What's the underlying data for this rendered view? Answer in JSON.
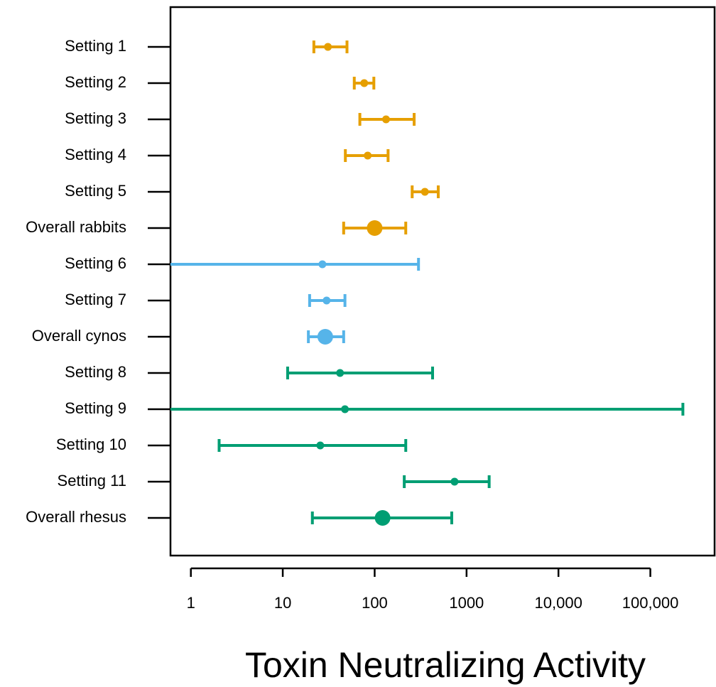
{
  "chart_data": {
    "type": "forest",
    "x_label": "Toxin Neutralizing Activity",
    "log_x": true,
    "categories": [
      "Setting 1",
      "Setting 2",
      "Setting 3",
      "Setting 4",
      "Setting 5",
      "Overall rabbits",
      "Setting 6",
      "Setting 7",
      "Overall cynos",
      "Setting 8",
      "Setting 9",
      "Setting 10",
      "Setting 11",
      "Overall rhesus"
    ],
    "values": [
      31,
      77,
      133,
      84,
      352,
      100,
      27,
      30,
      29,
      42,
      47.5,
      25.6,
      740,
      122
    ],
    "ci_low": [
      21.8,
      60,
      69,
      48,
      256,
      46,
      0.3,
      19.6,
      19,
      11.3,
      0.3,
      2.03,
      210,
      21
    ],
    "ci_high": [
      50,
      98,
      269,
      140,
      492,
      218,
      300,
      47.5,
      46,
      427,
      226000,
      218,
      1762,
      690
    ],
    "colors": [
      "#e69f00",
      "#e69f00",
      "#e69f00",
      "#e69f00",
      "#e69f00",
      "#e69f00",
      "#56b4e9",
      "#56b4e9",
      "#56b4e9",
      "#009e73",
      "#009e73",
      "#009e73",
      "#009e73",
      "#009e73"
    ],
    "emphasis": [
      false,
      false,
      false,
      false,
      false,
      true,
      false,
      false,
      true,
      false,
      false,
      false,
      false,
      true
    ],
    "xlim": [
      0.6,
      500000
    ],
    "xticks": [
      1,
      10,
      100,
      1000,
      {
        "value": 10000,
        "label": "10,000"
      },
      {
        "value": 100000,
        "label": "100,000"
      }
    ]
  }
}
